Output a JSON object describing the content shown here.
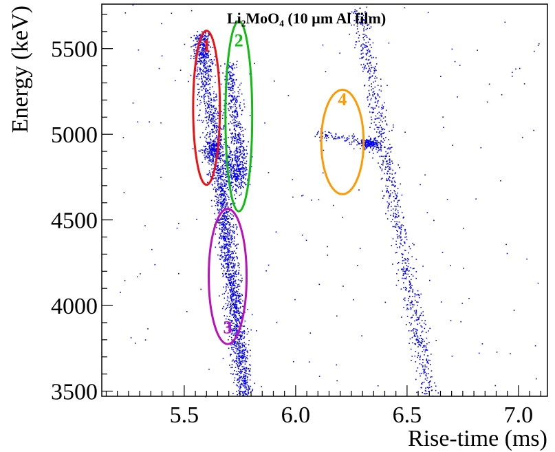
{
  "chart_data": {
    "type": "scatter",
    "title": "Li₂MoO₄ (10 µm Al film)",
    "xlabel": "Rise-time (ms)",
    "ylabel": "Energy (keV)",
    "xlim": [
      5.13,
      7.13
    ],
    "ylim": [
      3470,
      5760
    ],
    "x_ticks": [
      "5.5",
      "6.0",
      "6.5",
      "7.0"
    ],
    "x_tick_values": [
      5.5,
      6.0,
      6.5,
      7.0
    ],
    "y_ticks": [
      "3500",
      "4000",
      "4500",
      "5000",
      "5500"
    ],
    "y_tick_values": [
      3500,
      4000,
      4500,
      5000,
      5500
    ],
    "grid": false,
    "point_color": "#0000ee",
    "regions": [
      {
        "label": "1",
        "color": "#ee1111",
        "cx": 5.6,
        "cy": 5155,
        "rx": 0.06,
        "ry": 450
      },
      {
        "label": "2",
        "color": "#11bb11",
        "cx": 5.745,
        "cy": 5105,
        "rx": 0.06,
        "ry": 555
      },
      {
        "label": "3",
        "color": "#bb11bb",
        "cx": 5.695,
        "cy": 4170,
        "rx": 0.085,
        "ry": 395
      },
      {
        "label": "4",
        "color": "#ff9900",
        "cx": 6.21,
        "cy": 4955,
        "rx": 0.095,
        "ry": 305
      }
    ],
    "clusters": [
      {
        "name": "alpha-band-1",
        "xc": 5.58,
        "yc": 5500,
        "sx": 0.02,
        "sy": 60,
        "n": 160
      },
      {
        "name": "vertical-band-1",
        "x0": 5.57,
        "y0": 5580,
        "x1": 5.66,
        "y1": 4700,
        "sx": 0.022,
        "n": 700
      },
      {
        "name": "blob-4900",
        "xc": 5.63,
        "yc": 4910,
        "sx": 0.025,
        "sy": 30,
        "n": 200
      },
      {
        "name": "vertical-band-2",
        "x0": 5.7,
        "y0": 5420,
        "x1": 5.76,
        "y1": 4700,
        "sx": 0.018,
        "n": 450
      },
      {
        "name": "blob-4800",
        "xc": 5.72,
        "yc": 4790,
        "sx": 0.03,
        "sy": 70,
        "n": 300
      },
      {
        "name": "lower-band",
        "x0": 5.66,
        "y0": 4700,
        "x1": 5.77,
        "y1": 3470,
        "sx": 0.02,
        "n": 1400
      },
      {
        "name": "right-band",
        "x0": 6.28,
        "y0": 5740,
        "x1": 6.6,
        "y1": 3470,
        "sx": 0.02,
        "n": 900
      },
      {
        "name": "diagonal-streak",
        "x0": 6.08,
        "y0": 5010,
        "x1": 6.37,
        "y1": 4940,
        "sx": 0.01,
        "n": 120
      },
      {
        "name": "blob-4940",
        "xc": 6.33,
        "yc": 4945,
        "sx": 0.02,
        "sy": 12,
        "n": 160
      },
      {
        "name": "background",
        "uniform": true,
        "n": 180
      }
    ]
  }
}
